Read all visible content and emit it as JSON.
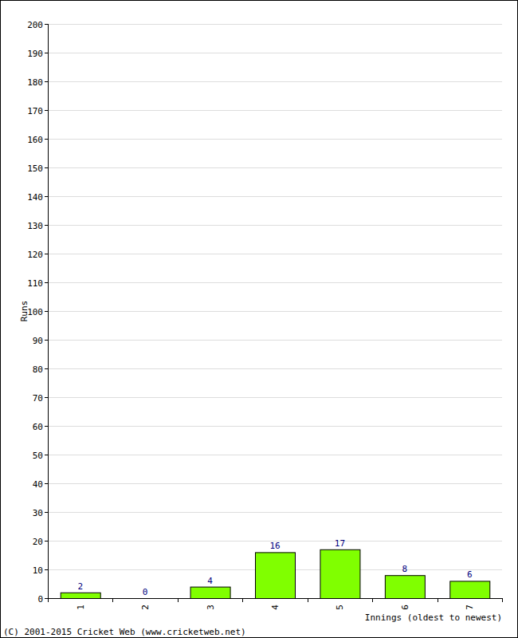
{
  "chart_data": {
    "type": "bar",
    "x_label": "Innings (oldest to newest)",
    "y_label": "Runs",
    "annotations": [
      "(C) 2001-2015 Cricket Web (www.cricketweb.net)"
    ],
    "categories": [
      "1",
      "2",
      "3",
      "4",
      "5",
      "6",
      "7"
    ],
    "values": [
      2,
      0,
      4,
      16,
      17,
      8,
      6
    ],
    "color": "#80ff00",
    "ylim": [
      0,
      200
    ],
    "yticks": [
      0,
      10,
      20,
      30,
      40,
      50,
      60,
      70,
      80,
      90,
      100,
      110,
      120,
      130,
      140,
      150,
      160,
      170,
      180,
      190,
      200
    ],
    "grid": true,
    "data_labels": true
  }
}
